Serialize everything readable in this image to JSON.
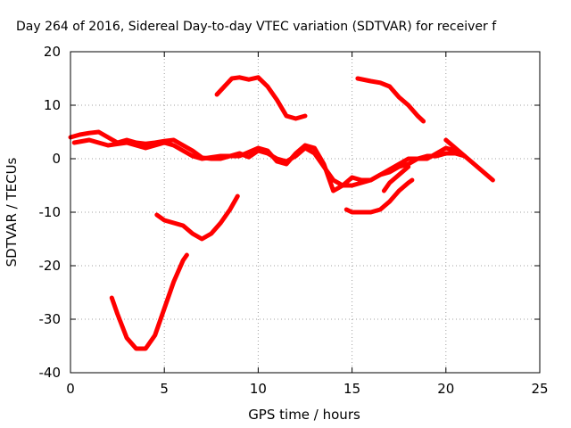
{
  "chart_data": {
    "type": "line",
    "title": "Day 264 of 2016, Sidereal Day-to-day VTEC variation (SDTVAR) for receiver f",
    "xlabel": "GPS time / hours",
    "ylabel": "SDTVAR / TECUs",
    "xlim": [
      0,
      25
    ],
    "ylim": [
      -40,
      20
    ],
    "x_ticks": [
      0,
      5,
      10,
      15,
      20,
      25
    ],
    "y_ticks": [
      -40,
      -30,
      -20,
      -10,
      0,
      10,
      20
    ],
    "grid": "dotted",
    "legend": "none",
    "series_color": "#ff0000",
    "series": [
      {
        "x": [
          0.0,
          0.5,
          1.0,
          1.5,
          2.0,
          2.5,
          3.0,
          3.5,
          4.0,
          4.5,
          5.0,
          5.5,
          6.0,
          6.5,
          7.0,
          7.5,
          8.0,
          8.5,
          9.0,
          9.5,
          10.0,
          10.5,
          11.0,
          11.5,
          12.0,
          12.5,
          13.0,
          13.5,
          14.0,
          14.5,
          15.0,
          15.5,
          16.0,
          16.5,
          17.0,
          17.5,
          18.0,
          18.5,
          19.0,
          19.5,
          20.0,
          20.5,
          21.0,
          21.5,
          22.0,
          22.5
        ],
        "y": [
          4,
          4.5,
          4.8,
          5,
          4,
          3,
          3.5,
          3,
          2.8,
          3,
          3.3,
          3.5,
          2.5,
          1.5,
          0.2,
          0,
          0,
          0.5,
          1,
          0.3,
          1.5,
          1,
          0,
          -0.5,
          0.5,
          2,
          1,
          -1.5,
          -4,
          -5,
          -5,
          -4.5,
          -4,
          -3,
          -2,
          -1,
          0,
          0,
          0.5,
          0.5,
          1,
          1,
          0.5,
          -1,
          -2.5,
          -4
        ]
      },
      {
        "x": [
          0.2,
          1.0,
          2.0,
          3.0,
          4.0,
          5.0,
          5.5,
          6.0,
          6.5,
          7.0,
          8.0,
          9.0,
          10.0,
          10.5,
          11.0,
          11.5,
          12.0,
          12.5,
          13.0,
          13.5,
          14.0,
          14.5,
          15.0,
          15.5,
          16.0,
          16.5,
          17.0,
          17.5,
          18.0,
          18.5,
          19.0,
          19.5,
          20.0,
          20.5,
          21.0
        ],
        "y": [
          3,
          3.5,
          2.5,
          3,
          2,
          3,
          2.5,
          1.5,
          0.5,
          0,
          0.5,
          0.5,
          2,
          1.5,
          -0.5,
          -1,
          1,
          2.5,
          2,
          -1,
          -6,
          -5,
          -3.5,
          -4,
          -4,
          -3,
          -2.5,
          -1.5,
          -1,
          0,
          0,
          1,
          2,
          1.5,
          0.5
        ]
      },
      {
        "x": [
          7.8,
          8.2,
          8.6,
          9.0,
          9.5,
          10.0,
          10.5,
          11.0,
          11.5,
          12.0,
          12.5
        ],
        "y": [
          12,
          13.5,
          15,
          15.2,
          14.8,
          15.2,
          13.5,
          11,
          8,
          7.5,
          8
        ]
      },
      {
        "x": [
          15.3,
          16.0,
          16.5,
          17.0,
          17.5,
          18.0,
          18.5,
          18.8
        ],
        "y": [
          15,
          14.5,
          14.2,
          13.5,
          11.5,
          10,
          8,
          7
        ]
      },
      {
        "x": [
          4.6,
          5.0,
          5.5,
          6.0,
          6.5,
          7.0,
          7.5,
          8.0,
          8.5,
          8.9
        ],
        "y": [
          -10.5,
          -11.5,
          -12,
          -12.5,
          -14,
          -15,
          -14,
          -12,
          -9.5,
          -7
        ]
      },
      {
        "x": [
          2.2,
          2.5,
          3.0,
          3.5,
          4.0,
          4.5,
          5.0,
          5.5,
          6.0,
          6.2
        ],
        "y": [
          -26,
          -29,
          -33.5,
          -35.5,
          -35.5,
          -33,
          -28,
          -23,
          -19,
          -18
        ]
      },
      {
        "x": [
          14.7,
          15.0,
          15.5,
          16.0,
          16.5,
          17.0,
          17.5,
          18.0,
          18.2
        ],
        "y": [
          -9.5,
          -10,
          -10,
          -10,
          -9.5,
          -8,
          -6,
          -4.5,
          -4
        ]
      },
      {
        "x": [
          16.7,
          17.0,
          17.5,
          18.0
        ],
        "y": [
          -6,
          -4.5,
          -3,
          -1.5
        ]
      },
      {
        "x": [
          20.0,
          20.5,
          21.0
        ],
        "y": [
          3.5,
          2,
          0.5
        ]
      }
    ]
  }
}
